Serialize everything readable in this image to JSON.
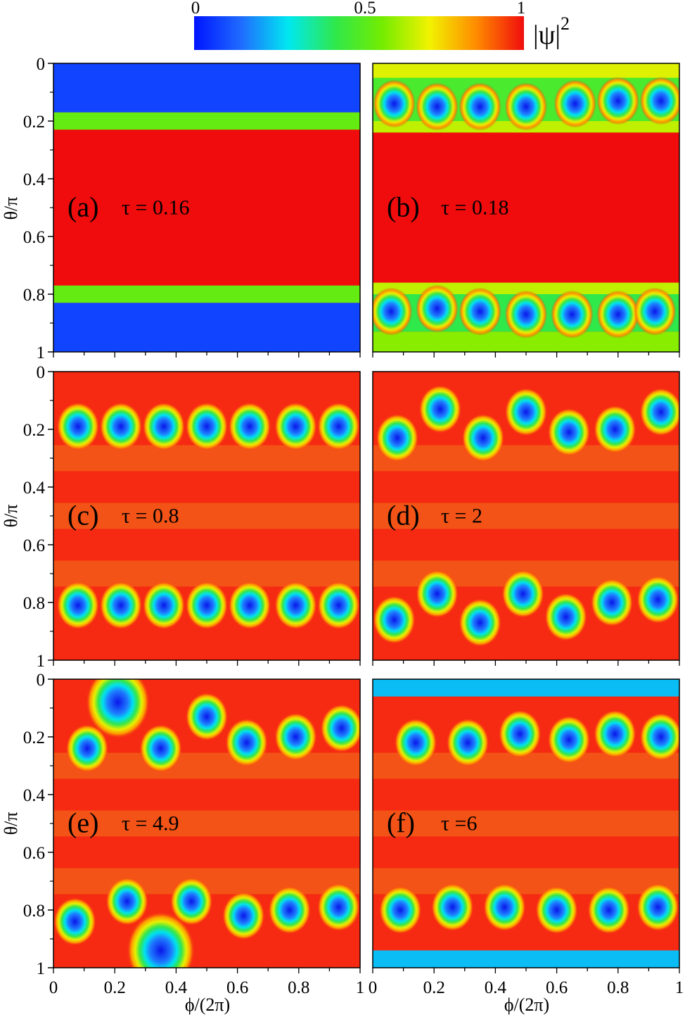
{
  "colorbar": {
    "label": "|ψ|²",
    "label_base": "|ψ|",
    "label_sup": "2",
    "ticks": [
      "0",
      "0.5",
      "1"
    ],
    "tick_values": [
      0,
      0.5,
      1
    ],
    "stops": [
      "#0014ff",
      "#1f6cff",
      "#00e8f0",
      "#2fe84a",
      "#74ec00",
      "#f2f200",
      "#ff8a00",
      "#f00c0c"
    ]
  },
  "colors": {
    "vortex_core": "#0a16ea",
    "red_high": "#f62a12",
    "red_band": "#f44a12",
    "orange_band": "#f25a18"
  },
  "axes": {
    "ylabel": "θ/π",
    "xlabel": "ϕ/(2π)",
    "y_ticks": [
      "0",
      "0.2",
      "0.4",
      "0.6",
      "0.8",
      "1"
    ],
    "x_ticks": [
      "0",
      "0.2",
      "0.4",
      "0.6",
      "0.8",
      "1"
    ]
  },
  "chart_data": {
    "type": "heatmap",
    "quantity": "|ψ|²",
    "x_range": [
      0,
      1
    ],
    "y_range": [
      0,
      1
    ],
    "y_inverted": true,
    "panels": [
      {
        "id": "a",
        "label": "(a)",
        "tau_text": "τ = 0.16",
        "tau": 0.16,
        "background": "red",
        "bands": [
          {
            "y": [
              0,
              0.17
            ],
            "level": 0.08
          },
          {
            "y": [
              0.17,
              0.23
            ],
            "level": 0.55
          },
          {
            "y": [
              0.23,
              0.77
            ],
            "level": 1.0
          },
          {
            "y": [
              0.77,
              0.83
            ],
            "level": 0.55
          },
          {
            "y": [
              0.83,
              1
            ],
            "level": 0.08
          }
        ],
        "vortices": []
      },
      {
        "id": "b",
        "label": "(b)",
        "tau_text": "τ = 0.18",
        "tau": 0.18,
        "background": "red",
        "bands": [
          {
            "y": [
              0,
              0.05
            ],
            "level": 0.68
          },
          {
            "y": [
              0.05,
              0.2
            ],
            "level": 0.5
          },
          {
            "y": [
              0.2,
              0.24
            ],
            "level": 0.65
          },
          {
            "y": [
              0.24,
              0.76
            ],
            "level": 1.0
          },
          {
            "y": [
              0.76,
              0.8
            ],
            "level": 0.65
          },
          {
            "y": [
              0.8,
              0.93
            ],
            "level": 0.45
          },
          {
            "y": [
              0.93,
              1
            ],
            "level": 0.6
          }
        ],
        "vortices": [
          {
            "phi": 0.07,
            "theta": 0.14
          },
          {
            "phi": 0.21,
            "theta": 0.15
          },
          {
            "phi": 0.35,
            "theta": 0.15
          },
          {
            "phi": 0.5,
            "theta": 0.15
          },
          {
            "phi": 0.66,
            "theta": 0.14
          },
          {
            "phi": 0.8,
            "theta": 0.13
          },
          {
            "phi": 0.94,
            "theta": 0.13
          },
          {
            "phi": 0.06,
            "theta": 0.86
          },
          {
            "phi": 0.21,
            "theta": 0.85
          },
          {
            "phi": 0.35,
            "theta": 0.86
          },
          {
            "phi": 0.5,
            "theta": 0.87
          },
          {
            "phi": 0.65,
            "theta": 0.87
          },
          {
            "phi": 0.8,
            "theta": 0.87
          },
          {
            "phi": 0.92,
            "theta": 0.86
          }
        ]
      },
      {
        "id": "c",
        "label": "(c)",
        "tau_text": "τ = 0.8",
        "tau": 0.8,
        "background": "red",
        "bands": [],
        "vortices": [
          {
            "phi": 0.08,
            "theta": 0.19
          },
          {
            "phi": 0.22,
            "theta": 0.19
          },
          {
            "phi": 0.36,
            "theta": 0.19
          },
          {
            "phi": 0.5,
            "theta": 0.19
          },
          {
            "phi": 0.64,
            "theta": 0.19
          },
          {
            "phi": 0.79,
            "theta": 0.19
          },
          {
            "phi": 0.93,
            "theta": 0.19
          },
          {
            "phi": 0.08,
            "theta": 0.81
          },
          {
            "phi": 0.22,
            "theta": 0.81
          },
          {
            "phi": 0.36,
            "theta": 0.81
          },
          {
            "phi": 0.5,
            "theta": 0.81
          },
          {
            "phi": 0.64,
            "theta": 0.81
          },
          {
            "phi": 0.79,
            "theta": 0.81
          },
          {
            "phi": 0.93,
            "theta": 0.81
          }
        ]
      },
      {
        "id": "d",
        "label": "(d)",
        "tau_text": "τ = 2",
        "tau": 2,
        "background": "red",
        "bands": [],
        "vortices": [
          {
            "phi": 0.08,
            "theta": 0.23
          },
          {
            "phi": 0.22,
            "theta": 0.13
          },
          {
            "phi": 0.36,
            "theta": 0.23
          },
          {
            "phi": 0.5,
            "theta": 0.14
          },
          {
            "phi": 0.64,
            "theta": 0.21
          },
          {
            "phi": 0.79,
            "theta": 0.2
          },
          {
            "phi": 0.94,
            "theta": 0.14
          },
          {
            "phi": 0.07,
            "theta": 0.86
          },
          {
            "phi": 0.21,
            "theta": 0.77
          },
          {
            "phi": 0.35,
            "theta": 0.87
          },
          {
            "phi": 0.49,
            "theta": 0.77
          },
          {
            "phi": 0.63,
            "theta": 0.85
          },
          {
            "phi": 0.78,
            "theta": 0.8
          },
          {
            "phi": 0.93,
            "theta": 0.79
          }
        ]
      },
      {
        "id": "e",
        "label": "(e)",
        "tau_text": "τ = 4.9",
        "tau": 4.9,
        "background": "red",
        "bands": [],
        "vortices": [
          {
            "phi": 0.21,
            "theta": 0.08,
            "scale": 1.5
          },
          {
            "phi": 0.11,
            "theta": 0.24
          },
          {
            "phi": 0.35,
            "theta": 0.24
          },
          {
            "phi": 0.5,
            "theta": 0.13
          },
          {
            "phi": 0.63,
            "theta": 0.22
          },
          {
            "phi": 0.79,
            "theta": 0.2
          },
          {
            "phi": 0.94,
            "theta": 0.17
          },
          {
            "phi": 0.07,
            "theta": 0.84
          },
          {
            "phi": 0.24,
            "theta": 0.77
          },
          {
            "phi": 0.45,
            "theta": 0.77
          },
          {
            "phi": 0.62,
            "theta": 0.82
          },
          {
            "phi": 0.77,
            "theta": 0.8
          },
          {
            "phi": 0.93,
            "theta": 0.79
          },
          {
            "phi": 0.35,
            "theta": 0.94,
            "scale": 1.6
          }
        ]
      },
      {
        "id": "f",
        "label": "(f)",
        "tau_text": "τ =6",
        "tau": 6,
        "background": "red",
        "bands": [
          {
            "y": [
              0,
              0.06
            ],
            "level": 0.25
          },
          {
            "y": [
              0.94,
              1
            ],
            "level": 0.25
          }
        ],
        "vortices": [
          {
            "phi": 0.14,
            "theta": 0.22
          },
          {
            "phi": 0.31,
            "theta": 0.22
          },
          {
            "phi": 0.48,
            "theta": 0.19
          },
          {
            "phi": 0.64,
            "theta": 0.21
          },
          {
            "phi": 0.79,
            "theta": 0.19
          },
          {
            "phi": 0.94,
            "theta": 0.2
          },
          {
            "phi": 0.09,
            "theta": 0.8
          },
          {
            "phi": 0.26,
            "theta": 0.79
          },
          {
            "phi": 0.43,
            "theta": 0.79
          },
          {
            "phi": 0.6,
            "theta": 0.8
          },
          {
            "phi": 0.77,
            "theta": 0.8
          },
          {
            "phi": 0.93,
            "theta": 0.79
          }
        ]
      }
    ]
  }
}
